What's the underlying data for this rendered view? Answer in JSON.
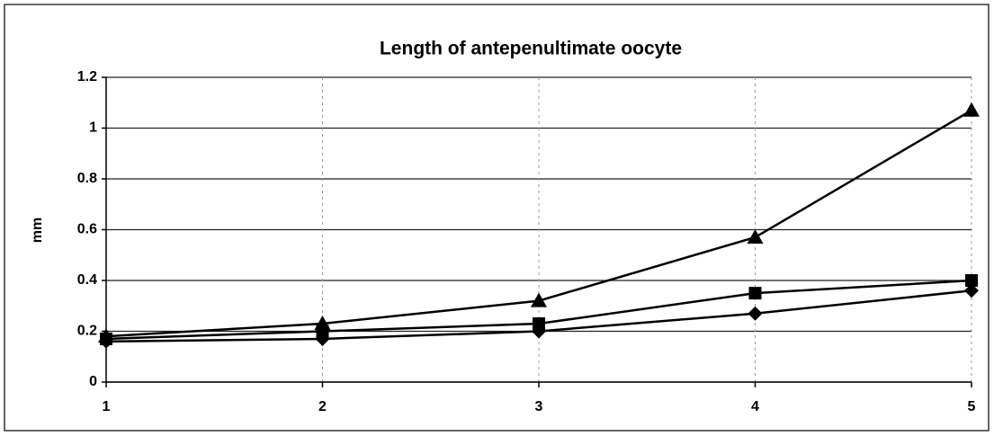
{
  "chart_data": {
    "type": "line",
    "title": "Length of antepenultimate oocyte",
    "y_label": "mm",
    "x": [
      1,
      2,
      3,
      4,
      5
    ],
    "series": [
      {
        "color": "#000000",
        "marker": "diamond",
        "values": [
          0.16,
          0.17,
          0.2,
          0.27,
          0.36
        ]
      },
      {
        "color": "#000000",
        "marker": "square",
        "values": [
          0.17,
          0.2,
          0.23,
          0.35,
          0.4
        ]
      },
      {
        "color": "#000000",
        "marker": "triangle",
        "values": [
          0.18,
          0.23,
          0.32,
          0.57,
          1.07
        ]
      }
    ],
    "xlim": [
      1,
      5
    ],
    "xticks": [
      1,
      2,
      3,
      4,
      5
    ],
    "ylim": [
      0,
      1.2
    ],
    "yticks": [
      0,
      0.2,
      0.4,
      0.6,
      0.8,
      1,
      1.2
    ],
    "grid": true
  }
}
